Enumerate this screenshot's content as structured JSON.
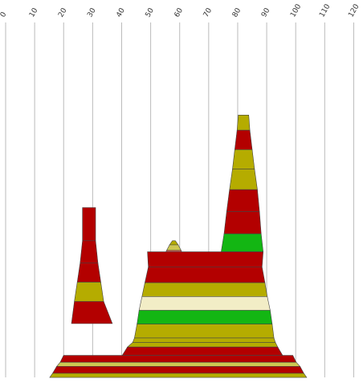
{
  "chart_data": {
    "type": "area",
    "x_axis": {
      "ticks": [
        "0",
        "10",
        "20",
        "30",
        "40",
        "50",
        "60",
        "70",
        "80",
        "90",
        "100",
        "110",
        "120"
      ],
      "range": [
        0,
        120
      ],
      "position": "top",
      "grid": true
    },
    "colors": {
      "olive": "#b5ac00",
      "red": "#b30000",
      "green": "#13b613",
      "cream": "#f2edc6",
      "salmon": "#d9534f",
      "khaki": "#cdc751",
      "outline": "#444444",
      "grid": "#bbbbbb"
    },
    "bands": [
      {
        "shape": "spike_left",
        "color": "red",
        "x_left_bottom": 26.5,
        "x_right_bottom": 31,
        "x_left_top": 26.5,
        "x_right_top": 31,
        "level_bottom": 0.8,
        "level_top": 0.92
      },
      {
        "shape": "spike_left",
        "color": "red",
        "x_left_bottom": 25.7,
        "x_right_bottom": 31.8,
        "x_left_top": 26.5,
        "x_right_top": 31,
        "level_bottom": 0.72,
        "level_top": 0.8
      },
      {
        "shape": "spike_left",
        "color": "red",
        "x_left_bottom": 24.7,
        "x_right_bottom": 32.8,
        "x_left_top": 25.7,
        "x_right_top": 31.8,
        "level_bottom": 0.65,
        "level_top": 0.72
      },
      {
        "shape": "spike_left",
        "color": "olive",
        "x_left_bottom": 23.7,
        "x_right_bottom": 33.8,
        "x_left_top": 24.7,
        "x_right_top": 32.8,
        "level_bottom": 0.58,
        "level_top": 0.65
      },
      {
        "shape": "spike_left",
        "color": "red",
        "x_left_bottom": 22.7,
        "x_right_bottom": 36.8,
        "x_left_top": 23.7,
        "x_right_top": 33.8,
        "level_bottom": 0.5,
        "level_top": 0.58
      },
      {
        "shape": "peak_small",
        "color": "olive",
        "x_left_bottom": 56.5,
        "x_right_bottom": 59.5,
        "x_left_top": 57.5,
        "x_right_top": 58.5,
        "level_bottom": 0.785,
        "level_top": 0.8
      },
      {
        "shape": "peak_small",
        "color": "khaki",
        "x_left_bottom": 55.5,
        "x_right_bottom": 60.5,
        "x_left_top": 56.5,
        "x_right_top": 59.5,
        "level_bottom": 0.765,
        "level_top": 0.785
      },
      {
        "shape": "peak_small",
        "color": "salmon",
        "x_left_bottom": 54.3,
        "x_right_bottom": 61.5,
        "x_left_top": 55.5,
        "x_right_top": 60.5,
        "level_bottom": 0.738,
        "level_top": 0.765
      },
      {
        "shape": "peak_small",
        "color": "khaki",
        "x_left_bottom": 53.2,
        "x_right_bottom": 63.2,
        "x_left_top": 54.3,
        "x_right_top": 61.5,
        "level_bottom": 0.72,
        "level_top": 0.738
      },
      {
        "shape": "peak_tall",
        "color": "olive",
        "x_left_bottom": 79.8,
        "x_right_bottom": 84.2,
        "x_left_top": 80.2,
        "x_right_top": 83.8,
        "level_bottom": 1.2,
        "level_top": 1.255
      },
      {
        "shape": "peak_tall",
        "color": "red",
        "x_left_bottom": 79.0,
        "x_right_bottom": 85.0,
        "x_left_top": 79.8,
        "x_right_top": 84.2,
        "level_bottom": 1.13,
        "level_top": 1.2
      },
      {
        "shape": "peak_tall",
        "color": "olive",
        "x_left_bottom": 78.2,
        "x_right_bottom": 85.8,
        "x_left_top": 79.0,
        "x_right_top": 85.0,
        "level_bottom": 1.06,
        "level_top": 1.13
      },
      {
        "shape": "peak_tall",
        "color": "olive",
        "x_left_bottom": 77.2,
        "x_right_bottom": 86.8,
        "x_left_top": 78.2,
        "x_right_top": 85.8,
        "level_bottom": 0.985,
        "level_top": 1.06
      },
      {
        "shape": "peak_tall",
        "color": "red",
        "x_left_bottom": 76.2,
        "x_right_bottom": 87.5,
        "x_left_top": 77.2,
        "x_right_top": 86.8,
        "level_bottom": 0.905,
        "level_top": 0.985
      },
      {
        "shape": "peak_tall",
        "color": "red",
        "x_left_bottom": 75.3,
        "x_right_bottom": 88.1,
        "x_left_top": 76.2,
        "x_right_top": 87.5,
        "level_bottom": 0.825,
        "level_top": 0.905
      },
      {
        "shape": "peak_tall",
        "color": "green",
        "x_left_bottom": 74.3,
        "x_right_bottom": 88.8,
        "x_left_top": 75.3,
        "x_right_top": 88.1,
        "level_bottom": 0.76,
        "level_top": 0.825
      },
      {
        "shape": "mid",
        "color": "red",
        "x_left_bottom": 49.2,
        "x_right_bottom": 88.4,
        "x_left_top": 48.9,
        "x_right_top": 88.8,
        "level_bottom": 0.705,
        "level_top": 0.76
      },
      {
        "shape": "mid",
        "color": "red",
        "x_left_bottom": 48.0,
        "x_right_bottom": 89.4,
        "x_left_top": 49.2,
        "x_right_top": 88.4,
        "level_bottom": 0.648,
        "level_top": 0.705
      },
      {
        "shape": "mid",
        "color": "olive",
        "x_left_bottom": 47.0,
        "x_right_bottom": 90.2,
        "x_left_top": 48.0,
        "x_right_top": 89.4,
        "level_bottom": 0.598,
        "level_top": 0.648
      },
      {
        "shape": "mid",
        "color": "cream",
        "x_left_bottom": 46.0,
        "x_right_bottom": 91.2,
        "x_left_top": 47.0,
        "x_right_top": 90.2,
        "level_bottom": 0.548,
        "level_top": 0.598
      },
      {
        "shape": "mid",
        "color": "green",
        "x_left_bottom": 45.3,
        "x_right_bottom": 91.9,
        "x_left_top": 46.0,
        "x_right_top": 91.2,
        "level_bottom": 0.498,
        "level_top": 0.548
      },
      {
        "shape": "mid",
        "color": "olive",
        "x_left_bottom": 44.4,
        "x_right_bottom": 92.5,
        "x_left_top": 45.3,
        "x_right_top": 91.9,
        "level_bottom": 0.448,
        "level_top": 0.498
      },
      {
        "shape": "mid",
        "color": "olive",
        "x_left_bottom": 43.8,
        "x_right_bottom": 93.0,
        "x_left_top": 44.4,
        "x_right_top": 92.5,
        "level_bottom": 0.432,
        "level_top": 0.448
      },
      {
        "shape": "mid",
        "color": "olive",
        "x_left_bottom": 42.0,
        "x_right_bottom": 93.8,
        "x_left_top": 43.8,
        "x_right_top": 93.0,
        "level_bottom": 0.415,
        "level_top": 0.432
      },
      {
        "shape": "mid",
        "color": "red",
        "x_left_bottom": 40.2,
        "x_right_bottom": 95.5,
        "x_left_top": 42.0,
        "x_right_top": 93.8,
        "level_bottom": 0.385,
        "level_top": 0.415
      },
      {
        "shape": "base",
        "color": "red",
        "x_left_bottom": 18.8,
        "x_right_bottom": 100.2,
        "x_left_top": 20.0,
        "x_right_top": 99.0,
        "level_bottom": 0.36,
        "level_top": 0.385
      },
      {
        "shape": "base",
        "color": "khaki",
        "x_left_bottom": 17.6,
        "x_right_bottom": 101.5,
        "x_left_top": 18.8,
        "x_right_top": 100.2,
        "level_bottom": 0.345,
        "level_top": 0.36
      },
      {
        "shape": "base",
        "color": "red",
        "x_left_bottom": 16.2,
        "x_right_bottom": 102.8,
        "x_left_top": 17.6,
        "x_right_top": 101.5,
        "level_bottom": 0.32,
        "level_top": 0.345
      },
      {
        "shape": "base",
        "color": "olive",
        "x_left_bottom": 15.2,
        "x_right_bottom": 103.8,
        "x_left_top": 16.2,
        "x_right_top": 102.8,
        "level_bottom": 0.305,
        "level_top": 0.32
      }
    ]
  }
}
